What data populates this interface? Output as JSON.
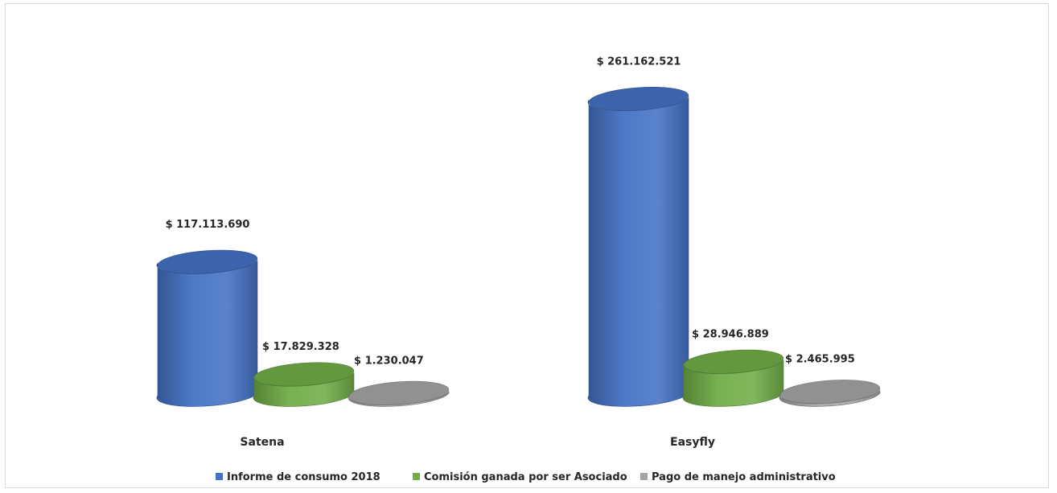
{
  "chart_data": {
    "type": "bar",
    "style": "3d-cylinder",
    "categories": [
      "Satena",
      "Easyfly"
    ],
    "series": [
      {
        "name": "Informe de consumo 2018",
        "values": [
          117113690,
          261162521
        ],
        "labels": [
          "$ 117.113.690",
          "$ 261.162.521"
        ],
        "color": "#4472c4"
      },
      {
        "name": "Comisión ganada por ser Asociado",
        "values": [
          17829328,
          28946889
        ],
        "labels": [
          "$ 17.829.328",
          "$ 28.946.889"
        ],
        "color": "#70ad47"
      },
      {
        "name": "Pago de manejo administrativo",
        "values": [
          1230047,
          2465995
        ],
        "labels": [
          "$ 1.230.047",
          "$ 2.465.995"
        ],
        "color": "#a5a5a5"
      }
    ],
    "title": "",
    "xlabel": "",
    "ylabel": "",
    "ylim": [
      0,
      270000000
    ],
    "grid": false,
    "legend": "bottom"
  }
}
